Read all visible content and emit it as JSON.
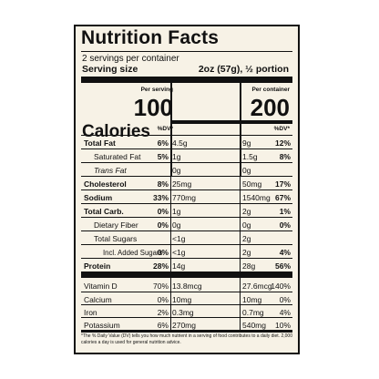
{
  "title": "Nutrition Facts",
  "servings_per_container": "2 servings per container",
  "serving_size_label": "Serving size",
  "serving_size_value": "2oz (57g), ½ portion",
  "calories_label": "Calories",
  "per_serving_label": "Per serving",
  "per_container_label": "Per container",
  "calories_per_serving": "100",
  "calories_per_container": "200",
  "dv_label": "%DV*",
  "rows": [
    {
      "name": "Total Fat",
      "a1": "4.5g",
      "d1": "6%",
      "a2": "9g",
      "d2": "12%"
    },
    {
      "name": "Saturated Fat",
      "a1": "1g",
      "d1": "5%",
      "a2": "1.5g",
      "d2": "8%"
    },
    {
      "name": "Trans Fat",
      "a1": "0g",
      "d1": "",
      "a2": "0g",
      "d2": ""
    },
    {
      "name": "Cholesterol",
      "a1": "25mg",
      "d1": "8%",
      "a2": "50mg",
      "d2": "17%"
    },
    {
      "name": "Sodium",
      "a1": "770mg",
      "d1": "33%",
      "a2": "1540mg",
      "d2": "67%"
    },
    {
      "name": "Total Carb.",
      "a1": "1g",
      "d1": "0%",
      "a2": "2g",
      "d2": "1%"
    },
    {
      "name": "Dietary Fiber",
      "a1": "0g",
      "d1": "0%",
      "a2": "0g",
      "d2": "0%"
    },
    {
      "name": "Total Sugars",
      "a1": "<1g",
      "d1": "",
      "a2": "2g",
      "d2": ""
    },
    {
      "name": "Incl. Added Sugars",
      "a1": "<1g",
      "d1": "0%",
      "a2": "2g",
      "d2": "4%"
    },
    {
      "name": "Protein",
      "a1": "14g",
      "d1": "28%",
      "a2": "28g",
      "d2": "56%"
    },
    {
      "name": "Vitamin D",
      "a1": "13.8mcg",
      "d1": "70%",
      "a2": "27.6mcg",
      "d2": "140%"
    },
    {
      "name": "Calcium",
      "a1": "10mg",
      "d1": "0%",
      "a2": "10mg",
      "d2": "0%"
    },
    {
      "name": "Iron",
      "a1": "0.3mg",
      "d1": "2%",
      "a2": "0.7mg",
      "d2": "4%"
    },
    {
      "name": "Potassium",
      "a1": "270mg",
      "d1": "6%",
      "a2": "540mg",
      "d2": "10%"
    }
  ],
  "footnote": "*The % Daily Value (DV) tells you how much nutrient in a serving of food contributes to a daily diet. 2,000 calories a day is used for general nutrition advice."
}
